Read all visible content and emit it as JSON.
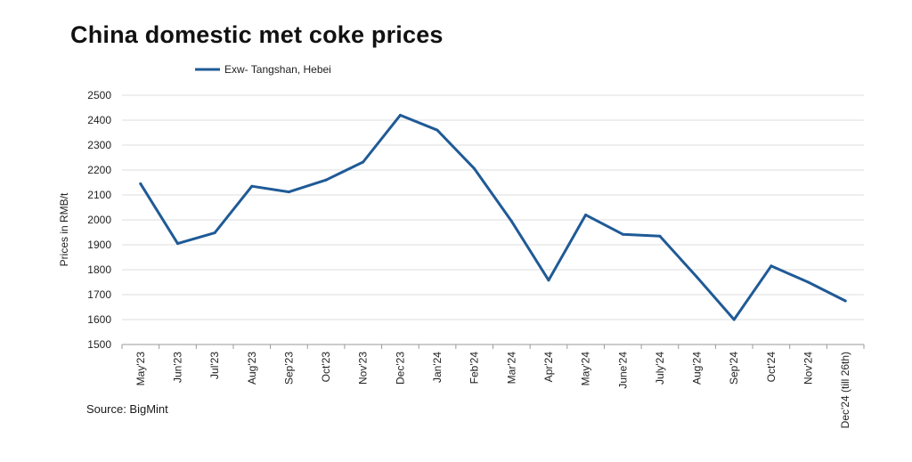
{
  "title": "China domestic met coke prices",
  "source": "Source: BigMint",
  "chart_data": {
    "type": "line",
    "title": "China domestic met coke prices",
    "xlabel": "",
    "ylabel": "Prices in RMB/t",
    "ylim": [
      1500,
      2500
    ],
    "yticks": [
      1500,
      1600,
      1700,
      1800,
      1900,
      2000,
      2100,
      2200,
      2300,
      2400,
      2500
    ],
    "grid": true,
    "legend_position": "top-left",
    "categories": [
      "May'23",
      "Jun'23",
      "Jul'23",
      "Aug'23",
      "Sep'23",
      "Oct'23",
      "Nov'23",
      "Dec'23",
      "Jan'24",
      "Feb'24",
      "Mar'24",
      "Apr'24",
      "May'24",
      "June'24",
      "July'24",
      "Aug'24",
      "Sep'24",
      "Oct'24",
      "Nov'24",
      "Dec'24 (till 26th)"
    ],
    "series": [
      {
        "name": "Exw- Tangshan, Hebei",
        "color": "#1f5a96",
        "values": [
          2145,
          1905,
          1948,
          2135,
          2112,
          2160,
          2232,
          2420,
          2360,
          2205,
          1995,
          1758,
          2020,
          1942,
          1935,
          1770,
          1600,
          1815,
          1750,
          1675
        ]
      }
    ]
  }
}
